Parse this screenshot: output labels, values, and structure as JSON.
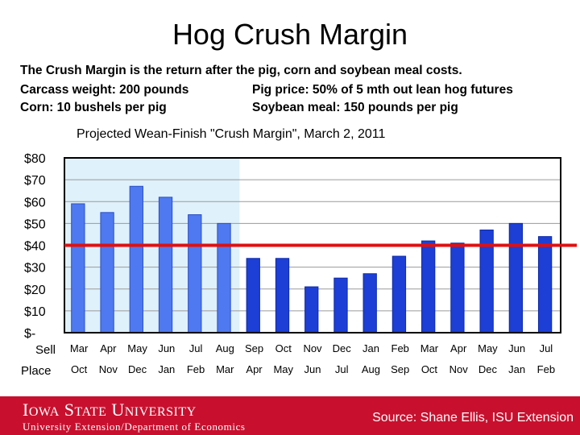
{
  "slide": {
    "title": "Hog Crush Margin",
    "lines": [
      "The Crush Margin is the return after the pig, corn and soybean meal costs.",
      "Carcass weight:  200 pounds",
      "Pig price:  50% of 5 mth out lean hog futures",
      "Corn:  10 bushels per pig",
      "Soybean meal:  150 pounds per pig"
    ]
  },
  "footer": {
    "logo": "Iowa State University",
    "department": "University Extension/Department of Economics",
    "source": "Source: Shane Ellis, ISU Extension"
  },
  "colors": {
    "projected_bar": "#4f79f0",
    "actual_bar": "#1d3fd6",
    "highlight_region": "#dff1fb",
    "reference_line": "#e01010",
    "footer_bg": "#c8102e"
  },
  "chart_data": {
    "type": "bar",
    "title": "Projected Wean-Finish \"Crush Margin\", March 2, 2011",
    "row_labels": [
      "Sell",
      "Place"
    ],
    "categories": [
      "Mar",
      "Apr",
      "May",
      "Jun",
      "Jul",
      "Aug",
      "Sep",
      "Oct",
      "Nov",
      "Dec",
      "Jan",
      "Feb",
      "Mar",
      "Apr",
      "May",
      "Jun",
      "Jul"
    ],
    "place_categories": [
      "Oct",
      "Nov",
      "Dec",
      "Jan",
      "Feb",
      "Mar",
      "Apr",
      "May",
      "Jun",
      "Jul",
      "Aug",
      "Sep",
      "Oct",
      "Nov",
      "Dec",
      "Jan",
      "Feb"
    ],
    "values": [
      59,
      55,
      67,
      62,
      54,
      50,
      34,
      34,
      21,
      25,
      27,
      35,
      42,
      41,
      47,
      50,
      44
    ],
    "highlighted_bars": 6,
    "y_ticks": [
      "$-",
      "$10",
      "$20",
      "$30",
      "$40",
      "$50",
      "$60",
      "$70",
      "$80"
    ],
    "ylim": [
      0,
      80
    ],
    "reference_line": 40,
    "grid": true,
    "legend": "none"
  }
}
